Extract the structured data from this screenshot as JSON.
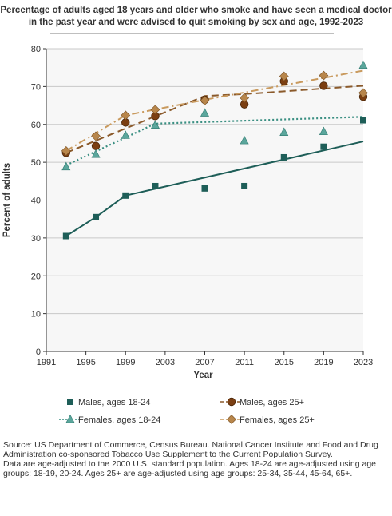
{
  "title": "Percentage of adults aged 18 years and older who smoke and have seen a medical doctor in the past year and were advised to quit smoking by sex and age, 1992-2023",
  "source": {
    "line1": "Source: US Department of Commerce, Census Bureau. National Cancer Institute and Food and Drug Administration co-sponsored Tobacco Use Supplement to the Current Population Survey.",
    "line2": "Data are age-adjusted to the 2000 U.S. standard population. Ages 18-24 are age-adjusted using age groups: 18-19, 20-24. Ages 25+ are age-adjusted using age groups: 25-34, 35-44, 45-64, 65+."
  },
  "chart_data": {
    "type": "scatter",
    "xlabel": "Year",
    "ylabel": "Percent of adults",
    "xlim": [
      1991,
      2023
    ],
    "ylim": [
      0,
      80
    ],
    "xticks": [
      1991,
      1995,
      1999,
      2003,
      2007,
      2011,
      2015,
      2019,
      2023
    ],
    "yticks": [
      0,
      10,
      20,
      30,
      40,
      50,
      60,
      70,
      80
    ],
    "grid": "horizontal",
    "legend_position": "bottom",
    "series": [
      {
        "name": "Males, ages 18-24",
        "marker": "square",
        "color": "#1e5e58",
        "line_style": "solid",
        "x": [
          1993,
          1996,
          1999,
          2002,
          2007,
          2011,
          2015,
          2019,
          2023
        ],
        "y": [
          30.5,
          35.5,
          41.2,
          43.7,
          43.1,
          43.7,
          51.3,
          54.1,
          61.1
        ],
        "trend": [
          [
            1993,
            30.5
          ],
          [
            1996,
            35.5
          ],
          [
            1999,
            41.2
          ],
          [
            2023,
            55.5
          ]
        ]
      },
      {
        "name": "Males, ages 25+",
        "marker": "circle",
        "color": "#7b3f12",
        "line_style": "dashed",
        "trend_color": "#8b5a2b",
        "x": [
          1993,
          1996,
          1999,
          2002,
          2007,
          2011,
          2015,
          2019,
          2023
        ],
        "y": [
          52.5,
          54.3,
          60.5,
          62.2,
          66.5,
          65.3,
          71.4,
          70.2,
          67.3
        ],
        "trend": [
          [
            1993,
            52.5
          ],
          [
            2007,
            67.5
          ],
          [
            2011,
            68.0
          ],
          [
            2023,
            70.2
          ]
        ]
      },
      {
        "name": "Females, ages 18-24",
        "marker": "triangle",
        "color": "#5ba69c",
        "line_style": "dotted",
        "trend_color": "#3a8f82",
        "x": [
          1993,
          1996,
          1999,
          2002,
          2007,
          2011,
          2015,
          2019,
          2023
        ],
        "y": [
          48.8,
          52.1,
          57.1,
          59.8,
          63.0,
          55.7,
          57.9,
          58.1,
          75.6
        ],
        "trend": [
          [
            1993,
            49.2
          ],
          [
            2002,
            60.2
          ],
          [
            2023,
            62.0
          ]
        ]
      },
      {
        "name": "Females, ages 25+",
        "marker": "diamond",
        "color": "#b8864b",
        "line_style": "dashdot",
        "trend_color": "#c99a5e",
        "x": [
          1993,
          1996,
          1999,
          2002,
          2007,
          2011,
          2015,
          2019,
          2023
        ],
        "y": [
          53.0,
          56.9,
          62.4,
          63.9,
          66.3,
          67.0,
          72.7,
          72.9,
          68.3
        ],
        "trend": [
          [
            1993,
            53.0
          ],
          [
            1999,
            62.4
          ],
          [
            2007,
            66.5
          ],
          [
            2023,
            74.2
          ]
        ]
      }
    ]
  }
}
